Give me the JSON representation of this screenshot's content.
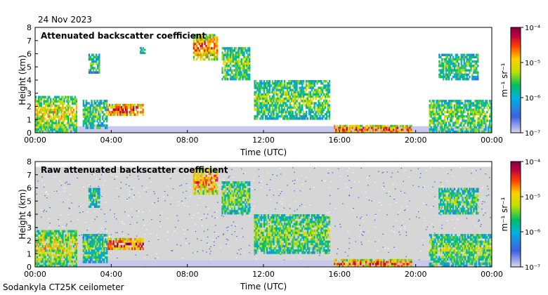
{
  "date": "24 Nov 2023",
  "instrument": "Sodankyla CT25K ceilometer",
  "colors": {
    "lowest": "#d8d8f0",
    "highest": "#800040",
    "noise_bg": "#d6d6d6"
  },
  "chart_data": [
    {
      "type": "heatmap",
      "title": "Attenuated backscatter coefficient",
      "xlabel": "Time (UTC)",
      "ylabel": "Height (km)",
      "xlim": [
        0,
        24
      ],
      "ylim": [
        0,
        8
      ],
      "x_ticks": [
        "00:00",
        "04:00",
        "08:00",
        "12:00",
        "16:00",
        "20:00",
        "00:00"
      ],
      "x_tick_values": [
        0,
        4,
        8,
        12,
        16,
        20,
        24
      ],
      "y_ticks": [
        "0",
        "1",
        "2",
        "3",
        "4",
        "5",
        "6",
        "7",
        "8"
      ],
      "colorbar": {
        "scale": "log",
        "range": [
          1e-07,
          0.0001
        ],
        "unit": "m⁻¹ sr⁻¹",
        "tick_labels": [
          "10⁻⁴",
          "10⁻⁵",
          "10⁻⁶",
          "10⁻⁷"
        ]
      },
      "features": [
        {
          "name": "boundary-layer-aerosol",
          "t_start": 0,
          "t_end": 2.2,
          "h_base": 0,
          "h_top": 2.8,
          "intensity": 0.65
        },
        {
          "name": "low-cloud-1",
          "t_start": 2.5,
          "t_end": 3.8,
          "h_base": 0.3,
          "h_top": 2.5,
          "intensity": 0.5
        },
        {
          "name": "cloud-layer-04",
          "t_start": 3.8,
          "t_end": 5.7,
          "h_base": 1.3,
          "h_top": 2.2,
          "intensity": 0.9
        },
        {
          "name": "mid-cloud-03",
          "t_start": 2.8,
          "t_end": 3.4,
          "h_base": 4.5,
          "h_top": 6.0,
          "intensity": 0.45
        },
        {
          "name": "mid-cloud-06",
          "t_start": 5.5,
          "t_end": 5.8,
          "h_base": 6.0,
          "h_top": 6.5,
          "intensity": 0.4
        },
        {
          "name": "high-cloud-08",
          "t_start": 8.3,
          "t_end": 9.6,
          "h_base": 5.5,
          "h_top": 7.5,
          "intensity": 0.8
        },
        {
          "name": "high-cloud-10",
          "t_start": 9.8,
          "t_end": 11.3,
          "h_base": 4.0,
          "h_top": 6.5,
          "intensity": 0.55
        },
        {
          "name": "descending-cloud",
          "t_start": 11.5,
          "t_end": 15.5,
          "h_base": 1.0,
          "h_top": 4.0,
          "intensity": 0.55
        },
        {
          "name": "surface-layer-16",
          "t_start": 15.7,
          "t_end": 19.8,
          "h_base": 0,
          "h_top": 0.6,
          "intensity": 0.85
        },
        {
          "name": "low-cloud-21",
          "t_start": 20.7,
          "t_end": 24,
          "h_base": 0,
          "h_top": 2.5,
          "intensity": 0.55
        },
        {
          "name": "high-cloud-22",
          "t_start": 21.2,
          "t_end": 23.3,
          "h_base": 4.0,
          "h_top": 6.0,
          "intensity": 0.5
        }
      ]
    },
    {
      "type": "heatmap",
      "title": "Raw attenuated backscatter coefficient",
      "xlabel": "Time (UTC)",
      "ylabel": "Height (km)",
      "xlim": [
        0,
        24
      ],
      "ylim": [
        0,
        8
      ],
      "x_ticks": [
        "00:00",
        "04:00",
        "08:00",
        "12:00",
        "16:00",
        "20:00",
        "00:00"
      ],
      "x_tick_values": [
        0,
        4,
        8,
        12,
        16,
        20,
        24
      ],
      "y_ticks": [
        "0",
        "1",
        "2",
        "3",
        "4",
        "5",
        "6",
        "7",
        "8"
      ],
      "colorbar": {
        "scale": "log",
        "range": [
          1e-07,
          0.0001
        ],
        "unit": "m⁻¹ sr⁻¹",
        "tick_labels": [
          "10⁻⁴",
          "10⁻⁵",
          "10⁻⁶",
          "10⁻⁷"
        ]
      },
      "noise_top_km": 7.6,
      "features": [
        {
          "name": "boundary-layer-aerosol",
          "t_start": 0,
          "t_end": 2.2,
          "h_base": 0,
          "h_top": 2.8,
          "intensity": 0.65
        },
        {
          "name": "low-cloud-1",
          "t_start": 2.5,
          "t_end": 3.8,
          "h_base": 0.3,
          "h_top": 2.5,
          "intensity": 0.5
        },
        {
          "name": "cloud-layer-04",
          "t_start": 3.8,
          "t_end": 5.7,
          "h_base": 1.3,
          "h_top": 2.2,
          "intensity": 0.9
        },
        {
          "name": "mid-cloud-03",
          "t_start": 2.8,
          "t_end": 3.4,
          "h_base": 4.5,
          "h_top": 6.0,
          "intensity": 0.45
        },
        {
          "name": "high-cloud-08",
          "t_start": 8.3,
          "t_end": 9.6,
          "h_base": 5.5,
          "h_top": 7.5,
          "intensity": 0.8
        },
        {
          "name": "high-cloud-10",
          "t_start": 9.8,
          "t_end": 11.3,
          "h_base": 4.0,
          "h_top": 6.5,
          "intensity": 0.55
        },
        {
          "name": "descending-cloud",
          "t_start": 11.5,
          "t_end": 15.5,
          "h_base": 1.0,
          "h_top": 4.0,
          "intensity": 0.55
        },
        {
          "name": "surface-layer-16",
          "t_start": 15.7,
          "t_end": 19.8,
          "h_base": 0,
          "h_top": 0.6,
          "intensity": 0.85
        },
        {
          "name": "low-cloud-21",
          "t_start": 20.7,
          "t_end": 24,
          "h_base": 0,
          "h_top": 2.5,
          "intensity": 0.55
        },
        {
          "name": "high-cloud-22",
          "t_start": 21.2,
          "t_end": 23.3,
          "h_base": 4.0,
          "h_top": 6.0,
          "intensity": 0.5
        }
      ]
    }
  ]
}
